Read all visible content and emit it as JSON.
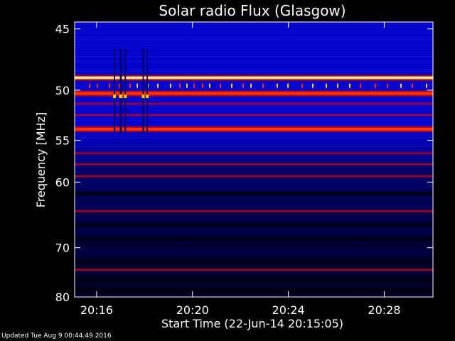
{
  "chart_data": {
    "type": "heatmap",
    "title": "Solar radio Flux (Glasgow)",
    "xlabel": "Start Time (22-Jun-14 20:15:05)",
    "ylabel": "Frequency [MHz]",
    "x_ticks": [
      "20:16",
      "20:20",
      "20:24",
      "20:28"
    ],
    "y_ticks": [
      45,
      50,
      55,
      60,
      70,
      80
    ],
    "ylim": [
      44.5,
      80
    ],
    "y_scale": "reciprocal",
    "x_start": "20:15:05",
    "x_end": "20:30:02",
    "colormap": [
      "#000010",
      "#00005a",
      "#0000c8",
      "#3c32ff",
      "#b4001e",
      "#ff3200",
      "#ffc800",
      "#ffffff"
    ],
    "bright_bands_mhz": [
      48.9,
      50.3,
      53.8
    ],
    "moderate_bands_mhz": [
      51.3,
      52.4,
      56.5,
      57.8,
      59.3,
      64.1,
      74.2
    ],
    "dark_bands_mhz": [
      61.5,
      66.2,
      68.5,
      72.5,
      76.0,
      78.5
    ]
  },
  "footer": "Updated Tue Aug  9 00:44:49 2016"
}
